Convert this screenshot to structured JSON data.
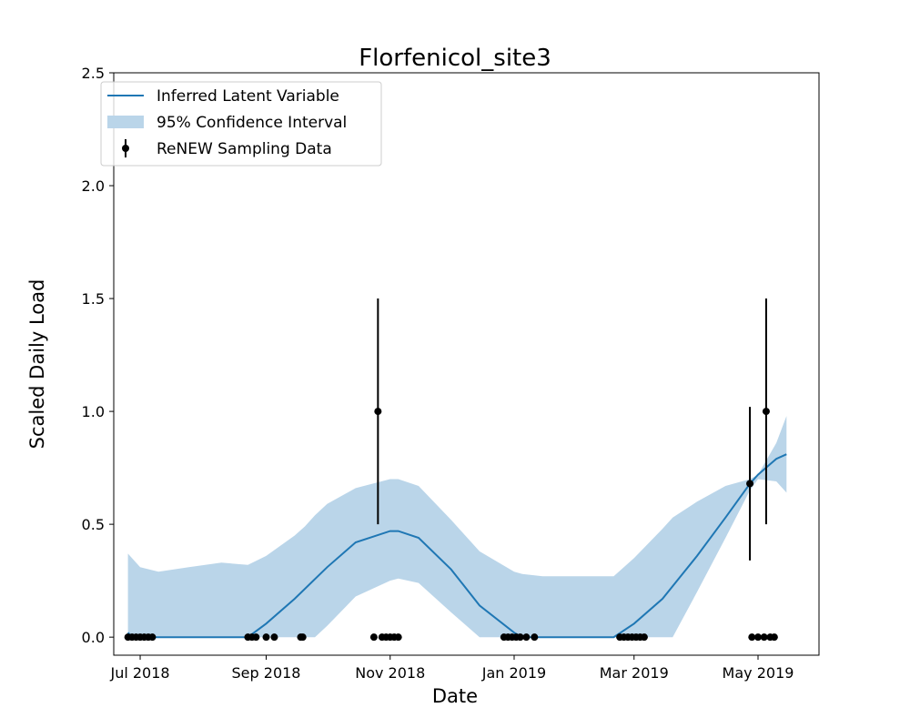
{
  "chart_data": {
    "type": "line",
    "title": "Florfenicol_site3",
    "xlabel": "Date",
    "ylabel": "Scaled Daily Load",
    "xlim": [
      "2018-06-18",
      "2019-05-31"
    ],
    "ylim": [
      -0.08,
      2.5
    ],
    "x_ticks": [
      {
        "date": "2018-07-01",
        "label": "Jul 2018"
      },
      {
        "date": "2018-09-01",
        "label": "Sep 2018"
      },
      {
        "date": "2018-11-01",
        "label": "Nov 2018"
      },
      {
        "date": "2019-01-01",
        "label": "Jan 2019"
      },
      {
        "date": "2019-03-01",
        "label": "Mar 2019"
      },
      {
        "date": "2019-05-01",
        "label": "May 2019"
      }
    ],
    "y_ticks": [
      {
        "value": 0.0,
        "label": "0.0"
      },
      {
        "value": 0.5,
        "label": "0.5"
      },
      {
        "value": 1.0,
        "label": "1.0"
      },
      {
        "value": 1.5,
        "label": "1.5"
      },
      {
        "value": 2.0,
        "label": "2.0"
      },
      {
        "value": 2.5,
        "label": "2.5"
      }
    ],
    "grid": false,
    "legend": {
      "position": "top-left",
      "entries": [
        "Inferred Latent Variable",
        "95% Confidence Interval",
        "ReNEW Sampling Data"
      ]
    },
    "series": [
      {
        "name": "Inferred Latent Variable",
        "kind": "line",
        "color": "#1f77b4",
        "x": [
          "2018-06-25",
          "2018-06-27",
          "2018-07-05",
          "2018-07-15",
          "2018-08-01",
          "2018-08-15",
          "2018-08-23",
          "2018-09-01",
          "2018-09-15",
          "2018-10-01",
          "2018-10-15",
          "2018-11-01",
          "2018-11-05",
          "2018-11-15",
          "2018-12-01",
          "2018-12-15",
          "2019-01-01",
          "2019-01-05",
          "2019-01-15",
          "2019-02-01",
          "2019-02-15",
          "2019-02-19",
          "2019-03-01",
          "2019-03-15",
          "2019-04-01",
          "2019-04-15",
          "2019-04-27",
          "2019-05-01",
          "2019-05-10",
          "2019-05-15"
        ],
        "y": [
          0.02,
          0.0,
          0.0,
          0.0,
          0.0,
          0.0,
          0.0,
          0.06,
          0.17,
          0.31,
          0.42,
          0.47,
          0.47,
          0.44,
          0.3,
          0.14,
          0.02,
          0.0,
          0.0,
          0.0,
          0.0,
          0.0,
          0.06,
          0.17,
          0.36,
          0.53,
          0.68,
          0.72,
          0.79,
          0.81
        ]
      },
      {
        "name": "95% Confidence Interval",
        "kind": "band",
        "color": "#bad5e9",
        "x": [
          "2018-06-25",
          "2018-07-01",
          "2018-07-10",
          "2018-07-25",
          "2018-08-10",
          "2018-08-23",
          "2018-09-01",
          "2018-09-15",
          "2018-09-20",
          "2018-09-25",
          "2018-10-01",
          "2018-10-15",
          "2018-11-01",
          "2018-11-05",
          "2018-11-15",
          "2018-12-01",
          "2018-12-15",
          "2019-01-01",
          "2019-01-05",
          "2019-01-15",
          "2019-02-01",
          "2019-02-15",
          "2019-02-19",
          "2019-03-01",
          "2019-03-15",
          "2019-03-20",
          "2019-04-01",
          "2019-04-15",
          "2019-04-27",
          "2019-05-01",
          "2019-05-10",
          "2019-05-15"
        ],
        "lower": [
          0.0,
          0.0,
          0.0,
          0.0,
          0.0,
          0.0,
          0.0,
          0.0,
          0.0,
          0.0,
          0.05,
          0.18,
          0.25,
          0.26,
          0.24,
          0.11,
          0.0,
          0.0,
          0.0,
          0.0,
          0.0,
          0.0,
          0.0,
          0.0,
          0.0,
          0.0,
          0.2,
          0.44,
          0.65,
          0.7,
          0.69,
          0.64
        ],
        "upper": [
          0.37,
          0.31,
          0.29,
          0.31,
          0.33,
          0.32,
          0.36,
          0.45,
          0.49,
          0.54,
          0.59,
          0.66,
          0.7,
          0.7,
          0.67,
          0.52,
          0.38,
          0.29,
          0.28,
          0.27,
          0.27,
          0.27,
          0.27,
          0.35,
          0.48,
          0.53,
          0.6,
          0.67,
          0.7,
          0.72,
          0.86,
          0.98
        ]
      },
      {
        "name": "ReNEW Sampling Data",
        "kind": "errorbar",
        "color": "#000000",
        "points": [
          {
            "x": "2018-06-25",
            "y": 0.0
          },
          {
            "x": "2018-06-27",
            "y": 0.0
          },
          {
            "x": "2018-06-29",
            "y": 0.0
          },
          {
            "x": "2018-07-01",
            "y": 0.0
          },
          {
            "x": "2018-07-03",
            "y": 0.0
          },
          {
            "x": "2018-07-05",
            "y": 0.0
          },
          {
            "x": "2018-07-07",
            "y": 0.0
          },
          {
            "x": "2018-08-23",
            "y": 0.0
          },
          {
            "x": "2018-08-25",
            "y": 0.0
          },
          {
            "x": "2018-08-27",
            "y": 0.0
          },
          {
            "x": "2018-09-01",
            "y": 0.0
          },
          {
            "x": "2018-09-05",
            "y": 0.0
          },
          {
            "x": "2018-09-18",
            "y": 0.0
          },
          {
            "x": "2018-09-19",
            "y": 0.0
          },
          {
            "x": "2018-10-24",
            "y": 0.0
          },
          {
            "x": "2018-10-26",
            "y": 1.0,
            "err": 0.5
          },
          {
            "x": "2018-10-28",
            "y": 0.0
          },
          {
            "x": "2018-10-30",
            "y": 0.0
          },
          {
            "x": "2018-11-01",
            "y": 0.0
          },
          {
            "x": "2018-11-03",
            "y": 0.0
          },
          {
            "x": "2018-11-05",
            "y": 0.0
          },
          {
            "x": "2018-12-27",
            "y": 0.0
          },
          {
            "x": "2018-12-29",
            "y": 0.0
          },
          {
            "x": "2018-12-31",
            "y": 0.0
          },
          {
            "x": "2019-01-02",
            "y": 0.0
          },
          {
            "x": "2019-01-04",
            "y": 0.0
          },
          {
            "x": "2019-01-07",
            "y": 0.0
          },
          {
            "x": "2019-01-11",
            "y": 0.0
          },
          {
            "x": "2019-02-22",
            "y": 0.0
          },
          {
            "x": "2019-02-24",
            "y": 0.0
          },
          {
            "x": "2019-02-26",
            "y": 0.0
          },
          {
            "x": "2019-02-28",
            "y": 0.0
          },
          {
            "x": "2019-03-02",
            "y": 0.0
          },
          {
            "x": "2019-03-04",
            "y": 0.0
          },
          {
            "x": "2019-03-06",
            "y": 0.0
          },
          {
            "x": "2019-04-27",
            "y": 0.68,
            "err": 0.34
          },
          {
            "x": "2019-04-28",
            "y": 0.0
          },
          {
            "x": "2019-05-01",
            "y": 0.0
          },
          {
            "x": "2019-05-04",
            "y": 0.0
          },
          {
            "x": "2019-05-05",
            "y": 1.0,
            "err": 0.5
          },
          {
            "x": "2019-05-07",
            "y": 0.0
          },
          {
            "x": "2019-05-09",
            "y": 0.0
          }
        ]
      }
    ]
  }
}
